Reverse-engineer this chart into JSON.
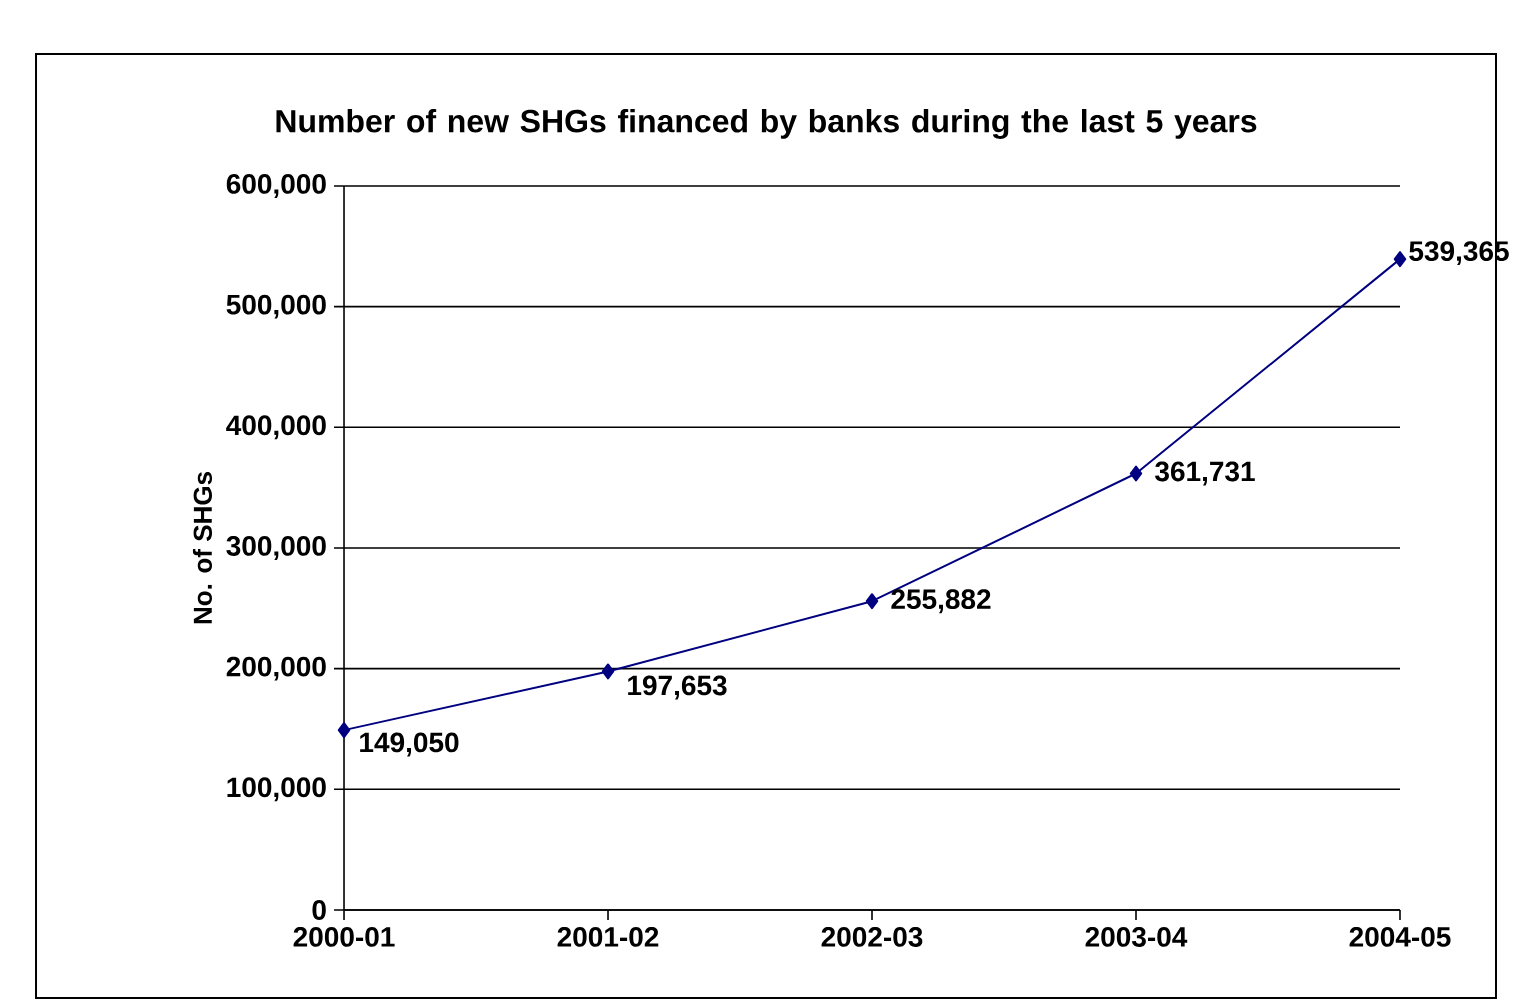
{
  "chart_data": {
    "type": "line",
    "title": "Number of new SHGs financed by banks during the last 5 years",
    "ylabel": "No. of SHGs",
    "categories": [
      "2000-01",
      "2001-02",
      "2002-03",
      "2003-04",
      "2004-05"
    ],
    "values": [
      149050,
      197653,
      255882,
      361731,
      539365
    ],
    "value_labels": [
      "149,050",
      "197,653",
      "255,882",
      "361,731",
      "539,365"
    ],
    "color": "#000080",
    "marker": "diamond",
    "line_style": "solid",
    "grid": "y",
    "ylim": [
      0,
      600000
    ],
    "yticks": [
      0,
      {
        "value": 100000,
        "label": "100,000"
      },
      {
        "value": 200000,
        "label": "200,000"
      },
      {
        "value": 300000,
        "label": "300,000"
      },
      {
        "value": 400000,
        "label": "400,000"
      },
      {
        "value": 500000,
        "label": "500,000"
      },
      {
        "value": 600000,
        "label": "600,000"
      }
    ]
  }
}
